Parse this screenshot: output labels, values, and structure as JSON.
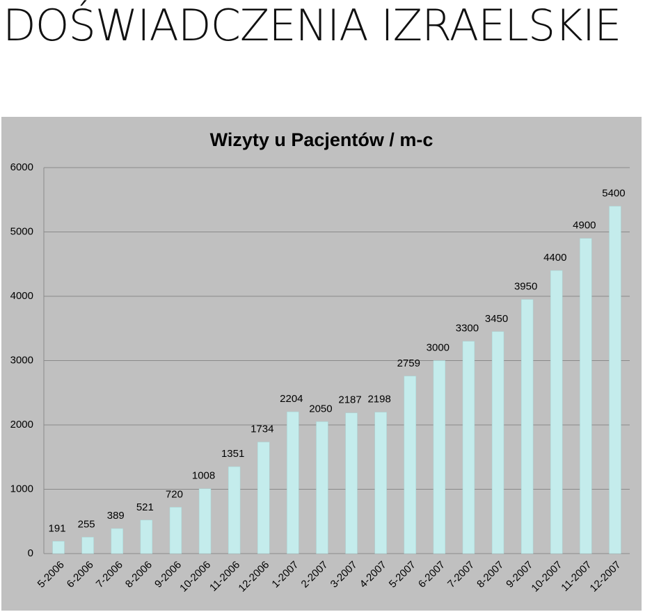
{
  "slide_title": "DOŚWIADCZENIA IZRAELSKIE",
  "chart_data": {
    "type": "bar",
    "title": "Wizyty u Pacjentów / m-c",
    "categories": [
      "5-2006",
      "6-2006",
      "7-2006",
      "8-2006",
      "9-2006",
      "10-2006",
      "11-2006",
      "12-2006",
      "1-2007",
      "2-2007",
      "3-2007",
      "4-2007",
      "5-2007",
      "6-2007",
      "7-2007",
      "8-2007",
      "9-2007",
      "10-2007",
      "11-2007",
      "12-2007"
    ],
    "values": [
      191,
      255,
      389,
      521,
      720,
      1008,
      1351,
      1734,
      2204,
      2050,
      2187,
      2198,
      2759,
      3000,
      3300,
      3450,
      3950,
      4400,
      4900,
      5400
    ],
    "color": "#c4ecec",
    "ylim": [
      0,
      6000
    ],
    "yticks": [
      0,
      1000,
      2000,
      3000,
      4000,
      5000,
      6000
    ],
    "grid": true
  }
}
